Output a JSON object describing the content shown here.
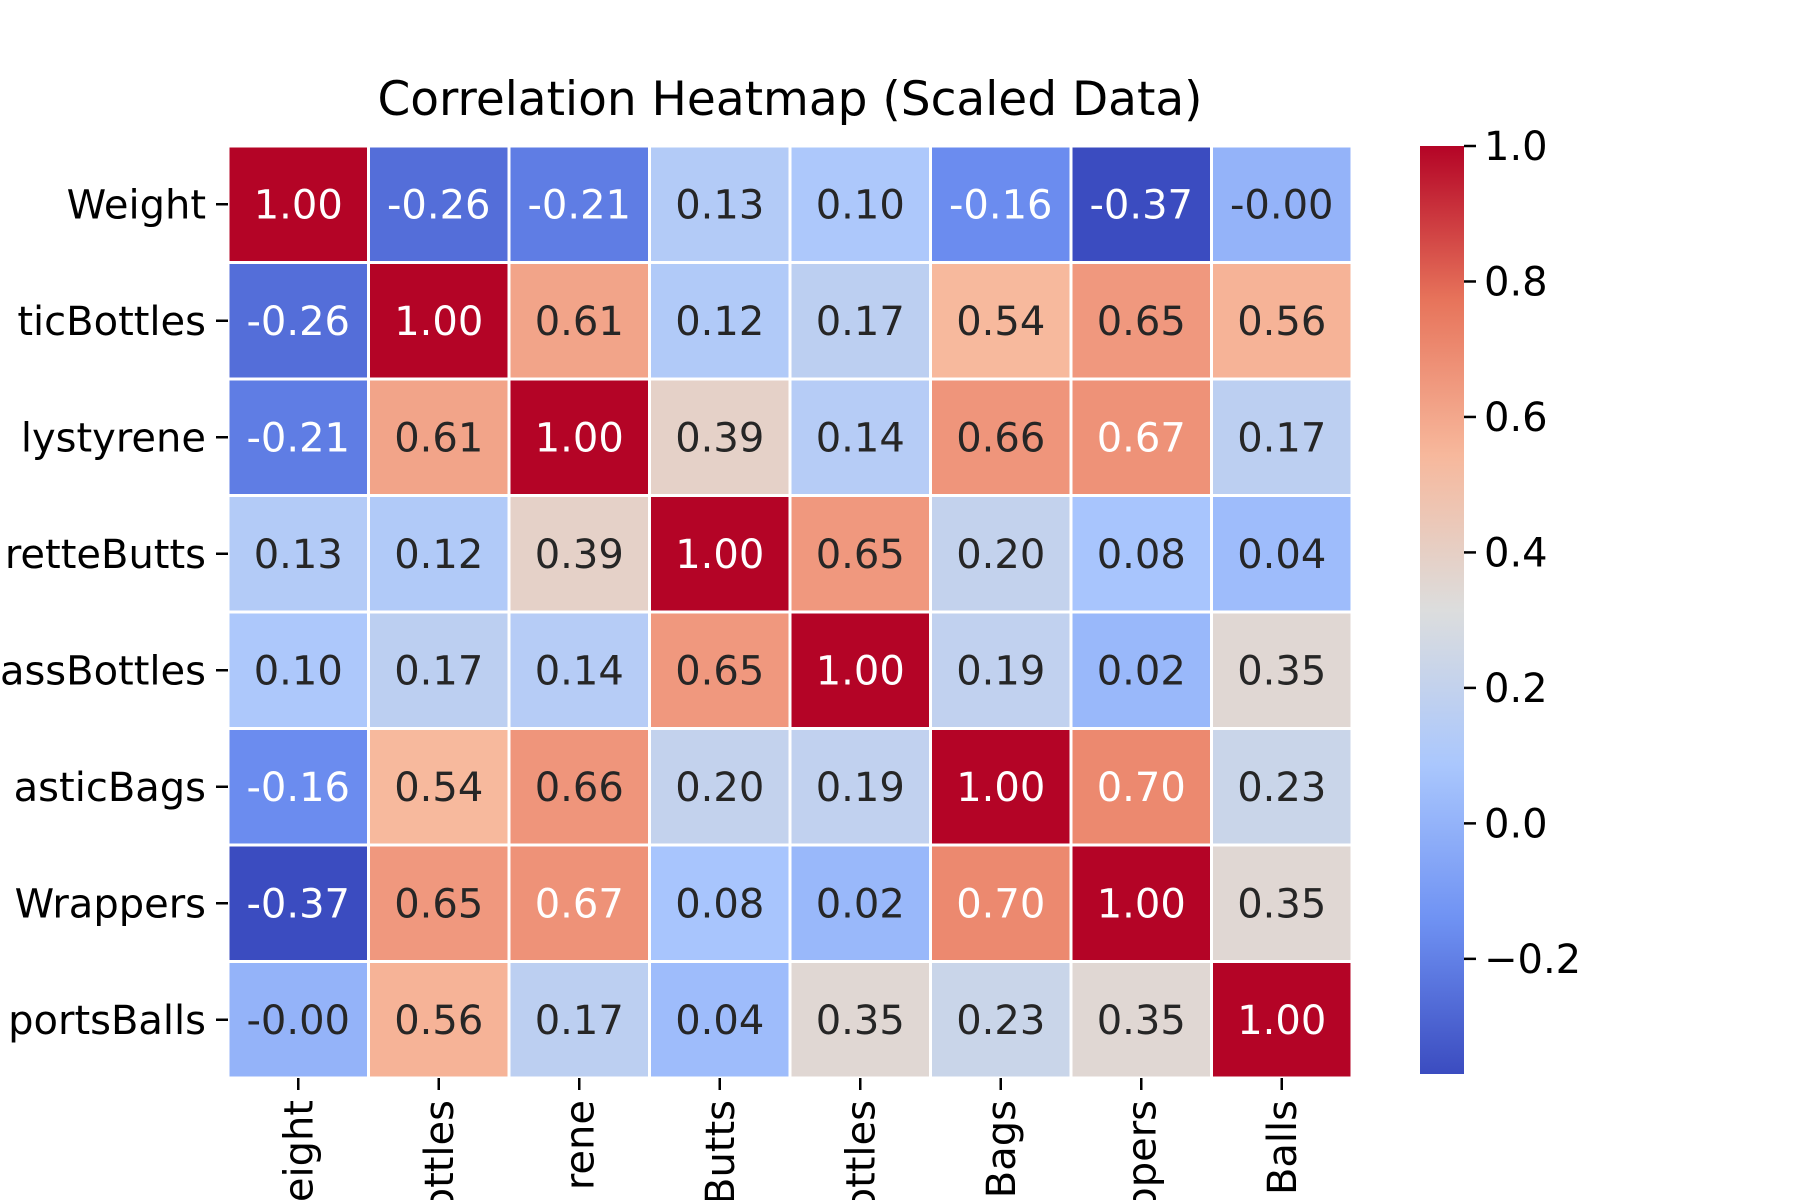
{
  "chart_data": {
    "type": "heatmap",
    "title": "Correlation Heatmap (Scaled Data)",
    "xlabel": "",
    "ylabel": "",
    "row_labels_visible": [
      "Weight",
      "ticBottles",
      "lystyrene",
      "retteButts",
      "assBottles",
      "asticBags",
      "Wrappers",
      "portsBalls"
    ],
    "col_labels_visible": [
      "eight",
      "ottles",
      "rene",
      "Butts",
      "ottles",
      "Bags",
      "ppers",
      "Balls"
    ],
    "values": [
      [
        1.0,
        -0.26,
        -0.21,
        0.13,
        0.1,
        -0.16,
        -0.37,
        -0.0
      ],
      [
        -0.26,
        1.0,
        0.61,
        0.12,
        0.17,
        0.54,
        0.65,
        0.56
      ],
      [
        -0.21,
        0.61,
        1.0,
        0.39,
        0.14,
        0.66,
        0.67,
        0.17
      ],
      [
        0.13,
        0.12,
        0.39,
        1.0,
        0.65,
        0.2,
        0.08,
        0.04
      ],
      [
        0.1,
        0.17,
        0.14,
        0.65,
        1.0,
        0.19,
        0.02,
        0.35
      ],
      [
        -0.16,
        0.54,
        0.66,
        0.2,
        0.19,
        1.0,
        0.7,
        0.23
      ],
      [
        -0.37,
        0.65,
        0.67,
        0.08,
        0.02,
        0.7,
        1.0,
        0.35
      ],
      [
        -0.0,
        0.56,
        0.17,
        0.04,
        0.35,
        0.23,
        0.35,
        1.0
      ]
    ],
    "annotations": [
      [
        "1.00",
        "-0.26",
        "-0.21",
        "0.13",
        "0.10",
        "-0.16",
        "-0.37",
        "-0.00"
      ],
      [
        "-0.26",
        "1.00",
        "0.61",
        "0.12",
        "0.17",
        "0.54",
        "0.65",
        "0.56"
      ],
      [
        "-0.21",
        "0.61",
        "1.00",
        "0.39",
        "0.14",
        "0.66",
        "0.67",
        "0.17"
      ],
      [
        "0.13",
        "0.12",
        "0.39",
        "1.00",
        "0.65",
        "0.20",
        "0.08",
        "0.04"
      ],
      [
        "0.10",
        "0.17",
        "0.14",
        "0.65",
        "1.00",
        "0.19",
        "0.02",
        "0.35"
      ],
      [
        "-0.16",
        "0.54",
        "0.66",
        "0.20",
        "0.19",
        "1.00",
        "0.70",
        "0.23"
      ],
      [
        "-0.37",
        "0.65",
        "0.67",
        "0.08",
        "0.02",
        "0.70",
        "1.00",
        "0.35"
      ],
      [
        "-0.00",
        "0.56",
        "0.17",
        "0.04",
        "0.35",
        "0.23",
        "0.35",
        "1.00"
      ]
    ],
    "colormap": "coolwarm",
    "colormap_stops": [
      "#3b4cc0",
      "#6f92f3",
      "#aac7fd",
      "#dcdddd",
      "#f7b89c",
      "#e7745b",
      "#b40426"
    ],
    "vmin": -0.37,
    "vmax": 1.0,
    "grid": true,
    "colorbar": {
      "ticks": [
        1.0,
        0.8,
        0.6,
        0.4,
        0.2,
        0.0,
        -0.2
      ],
      "tick_labels": [
        "1.0",
        "0.8",
        "0.6",
        "0.4",
        "0.2",
        "0.0",
        "−0.2"
      ],
      "placement": "right"
    }
  }
}
